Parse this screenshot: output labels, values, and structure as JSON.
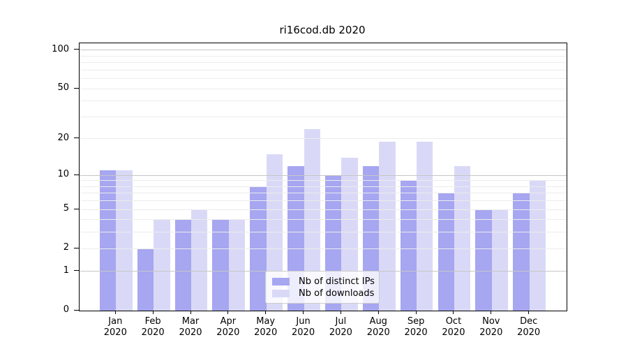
{
  "chart_data": {
    "type": "bar",
    "title": "ri16cod.db 2020",
    "months": [
      "Jan",
      "Feb",
      "Mar",
      "Apr",
      "May",
      "Jun",
      "Jul",
      "Aug",
      "Sep",
      "Oct",
      "Nov",
      "Dec"
    ],
    "year_label": "2020",
    "categories": [
      "Jan 2020",
      "Feb 2020",
      "Mar 2020",
      "Apr 2020",
      "May 2020",
      "Jun 2020",
      "Jul 2020",
      "Aug 2020",
      "Sep 2020",
      "Oct 2020",
      "Nov 2020",
      "Dec 2020"
    ],
    "series": [
      {
        "name": "Nb of distinct IPs",
        "color": "#a6a6f1",
        "values": [
          11,
          2,
          4,
          4,
          8,
          12,
          10,
          12,
          9,
          7,
          5,
          7
        ]
      },
      {
        "name": "Nb of downloads",
        "color": "#d9d9f7",
        "values": [
          11,
          4,
          5,
          4,
          15,
          24,
          14,
          19,
          19,
          12,
          5,
          9
        ]
      }
    ],
    "xlabel": "",
    "ylabel": "",
    "scale": "log1p",
    "ylim": [
      0,
      113
    ],
    "y_ticks": [
      0,
      1,
      2,
      5,
      10,
      20,
      50,
      100
    ],
    "y_major_gridlines": [
      1,
      10,
      100
    ],
    "y_minor_gridlines": [
      2,
      3,
      4,
      5,
      6,
      7,
      8,
      9,
      20,
      30,
      40,
      50,
      60,
      70,
      80,
      90
    ],
    "grid": "on",
    "legend_position": "lower-center"
  },
  "legend": {
    "items": [
      "Nb of distinct IPs",
      "Nb of downloads"
    ]
  },
  "colors": {
    "series_dark": "#a6a6f1",
    "series_light": "#d9d9f7",
    "grid_major": "#c6c6c6",
    "grid_minor": "#ececec",
    "axis": "#000000",
    "legend_border": "#cccccc",
    "background": "#ffffff"
  }
}
